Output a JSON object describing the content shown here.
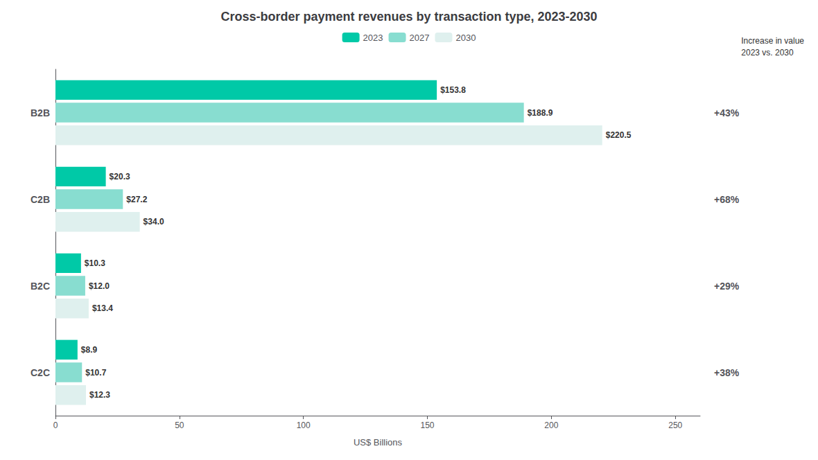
{
  "chart_data": {
    "type": "bar",
    "orientation": "horizontal",
    "title": "Cross-border payment revenues by transaction type, 2023-2030",
    "xlabel": "US$ Billions",
    "categories": [
      "B2B",
      "C2B",
      "B2C",
      "C2C"
    ],
    "series": [
      {
        "name": "2023",
        "color": "#00c9a7",
        "values": [
          153.8,
          20.3,
          10.3,
          8.9
        ],
        "value_labels": [
          "$153.8",
          "$20.3",
          "$10.3",
          "$8.9"
        ]
      },
      {
        "name": "2027",
        "color": "#88ddd0",
        "values": [
          188.9,
          27.2,
          12.0,
          10.7
        ],
        "value_labels": [
          "$188.9",
          "$27.2",
          "$12.0",
          "$10.7"
        ]
      },
      {
        "name": "2030",
        "color": "#dff0ee",
        "values": [
          220.5,
          34.0,
          13.4,
          12.3
        ],
        "value_labels": [
          "$220.5",
          "$34.0",
          "$13.4",
          "$12.3"
        ]
      }
    ],
    "xlim": [
      0,
      260
    ],
    "xticks": [
      0,
      50,
      100,
      150,
      200,
      250
    ],
    "data_labels": true,
    "legend": "top",
    "grid": false,
    "annotations": [
      {
        "text": "Increase in value\n2023 vs. 2030"
      },
      {
        "category": "B2B",
        "text": "+43%"
      },
      {
        "category": "C2B",
        "text": "+68%"
      },
      {
        "category": "B2C",
        "text": "+29%"
      },
      {
        "category": "C2C",
        "text": "+38%"
      }
    ]
  }
}
